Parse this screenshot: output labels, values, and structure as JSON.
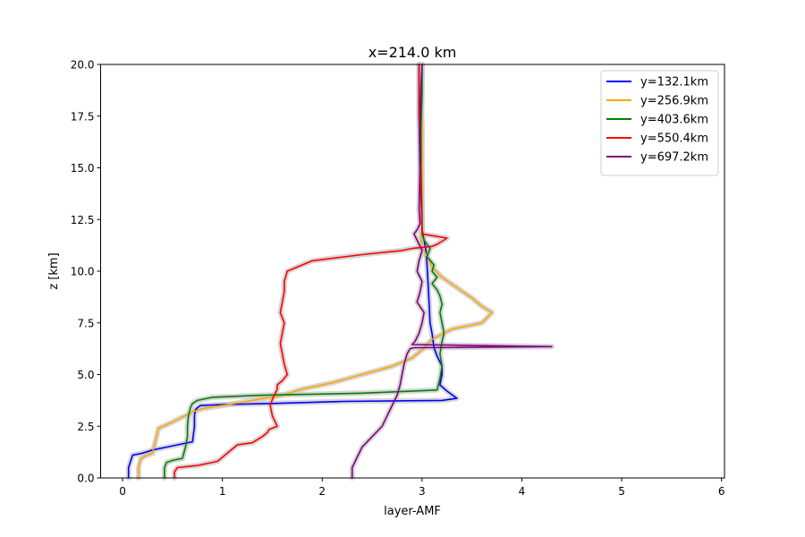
{
  "chart_data": {
    "type": "line",
    "title": "x=214.0 km",
    "xlabel": "layer-AMF",
    "ylabel": "z [km]",
    "xlim": [
      -0.22,
      6.03
    ],
    "ylim": [
      0,
      20
    ],
    "xticks": [
      0,
      1,
      2,
      3,
      4,
      5,
      6
    ],
    "xtick_labels": [
      "0",
      "1",
      "2",
      "3",
      "4",
      "5",
      "6"
    ],
    "yticks": [
      0,
      2.5,
      5,
      7.5,
      10,
      12.5,
      15,
      17.5,
      20
    ],
    "ytick_labels": [
      "0.0",
      "2.5",
      "5.0",
      "7.5",
      "10.0",
      "12.5",
      "15.0",
      "17.5",
      "20.0"
    ],
    "grid": false,
    "legend_position": "top-right",
    "uncertainty_color": "#c8c8c8",
    "series": [
      {
        "name": "y=132.1km",
        "color": "#0000ff",
        "x": [
          0.06,
          0.06,
          0.08,
          0.1,
          0.2,
          0.3,
          0.45,
          0.6,
          0.7,
          0.72,
          0.72,
          0.73,
          0.75,
          0.78,
          1.0,
          1.5,
          2.2,
          3.2,
          3.35,
          3.25,
          3.18,
          3.2,
          3.2,
          3.15,
          3.12,
          3.1,
          3.08,
          3.07,
          3.06,
          3.05,
          3.04,
          3.02,
          3.0,
          2.98,
          2.97,
          2.97
        ],
        "y": [
          0.0,
          0.5,
          0.8,
          1.1,
          1.2,
          1.35,
          1.5,
          1.65,
          1.75,
          2.5,
          3.0,
          3.3,
          3.4,
          3.5,
          3.55,
          3.6,
          3.7,
          3.75,
          3.85,
          4.2,
          4.5,
          5.0,
          5.4,
          5.9,
          6.3,
          7.0,
          7.5,
          8.5,
          9.5,
          10.3,
          11.0,
          11.5,
          12.0,
          15.0,
          17.5,
          20.0
        ]
      },
      {
        "name": "y=256.9km",
        "color": "#ffa500",
        "x": [
          0.16,
          0.16,
          0.18,
          0.22,
          0.3,
          0.32,
          0.34,
          0.36,
          0.5,
          0.6,
          0.65,
          0.7,
          0.8,
          1.0,
          1.3,
          1.6,
          1.8,
          2.1,
          2.4,
          2.7,
          2.9,
          3.0,
          3.1,
          3.3,
          3.6,
          3.7,
          3.6,
          3.5,
          3.35,
          3.2,
          3.1,
          3.05,
          3.0,
          2.99,
          3.0,
          3.0,
          3.0,
          3.0,
          2.99,
          3.0
        ],
        "y": [
          0.0,
          0.5,
          0.9,
          1.05,
          1.2,
          1.6,
          2.0,
          2.4,
          2.7,
          2.95,
          3.05,
          3.2,
          3.35,
          3.5,
          3.75,
          4.0,
          4.3,
          4.6,
          5.0,
          5.4,
          5.8,
          6.2,
          6.7,
          7.2,
          7.5,
          8.0,
          8.3,
          8.7,
          9.2,
          9.7,
          10.2,
          10.7,
          11.2,
          11.6,
          12.0,
          13.0,
          15.0,
          17.0,
          18.5,
          20.0
        ]
      },
      {
        "name": "y=403.6km",
        "color": "#008000",
        "x": [
          0.42,
          0.42,
          0.44,
          0.5,
          0.6,
          0.63,
          0.65,
          0.65,
          0.66,
          0.68,
          0.7,
          0.75,
          0.9,
          1.4,
          2.4,
          3.15,
          3.18,
          3.2,
          3.18,
          3.2,
          3.22,
          3.2,
          3.18,
          3.2,
          3.18,
          3.15,
          3.1,
          3.15,
          3.1,
          3.12,
          3.05,
          3.08,
          3.02,
          3.0,
          3.0,
          2.99,
          2.99,
          3.0,
          3.0
        ],
        "y": [
          0.0,
          0.5,
          0.75,
          0.85,
          0.95,
          1.5,
          2.0,
          2.5,
          3.0,
          3.4,
          3.6,
          3.75,
          3.9,
          4.0,
          4.1,
          4.25,
          4.8,
          5.4,
          6.0,
          6.6,
          7.0,
          7.5,
          8.0,
          8.4,
          8.8,
          9.1,
          9.4,
          9.7,
          10.0,
          10.3,
          10.7,
          11.1,
          11.5,
          11.8,
          12.5,
          15.0,
          17.0,
          18.5,
          20.0
        ]
      },
      {
        "name": "y=550.4km",
        "color": "#ff0000",
        "x": [
          0.52,
          0.52,
          0.55,
          0.75,
          0.95,
          1.05,
          1.15,
          1.3,
          1.4,
          1.45,
          1.47,
          1.55,
          1.5,
          1.48,
          1.5,
          1.52,
          1.55,
          1.55,
          1.6,
          1.65,
          1.62,
          1.6,
          1.58,
          1.6,
          1.62,
          1.58,
          1.6,
          1.62,
          1.62,
          1.65,
          1.9,
          2.4,
          2.8,
          2.9,
          3.1,
          3.15,
          3.25,
          3.0,
          3.0,
          2.99,
          2.98,
          2.97,
          2.97
        ],
        "y": [
          0.0,
          0.3,
          0.5,
          0.6,
          0.8,
          1.2,
          1.6,
          1.7,
          2.0,
          2.2,
          2.35,
          2.5,
          3.0,
          3.5,
          3.8,
          4.0,
          4.3,
          4.5,
          4.7,
          5.0,
          5.5,
          6.0,
          6.5,
          7.0,
          7.5,
          8.0,
          8.5,
          9.0,
          9.5,
          10.0,
          10.5,
          10.8,
          11.0,
          11.1,
          11.2,
          11.3,
          11.6,
          11.8,
          12.0,
          14.0,
          16.0,
          18.0,
          20.0
        ]
      },
      {
        "name": "y=697.2km",
        "color": "#800080",
        "x": [
          2.3,
          2.3,
          2.35,
          2.4,
          2.5,
          2.6,
          2.65,
          2.7,
          2.75,
          2.78,
          2.8,
          2.82,
          2.85,
          2.88,
          2.92,
          4.3,
          2.9,
          2.93,
          2.97,
          3.0,
          3.02,
          2.95,
          2.98,
          3.0,
          2.95,
          2.97,
          3.0,
          2.95,
          2.92,
          2.95,
          2.98,
          2.97,
          2.98,
          2.98,
          2.99,
          3.0
        ],
        "y": [
          0.0,
          0.5,
          1.0,
          1.5,
          2.0,
          2.5,
          3.0,
          3.5,
          4.0,
          4.5,
          5.0,
          5.5,
          6.0,
          6.25,
          6.3,
          6.35,
          6.45,
          6.6,
          7.0,
          7.5,
          8.0,
          8.5,
          9.0,
          9.5,
          10.0,
          10.5,
          11.0,
          11.5,
          11.8,
          12.0,
          12.3,
          13.0,
          15.0,
          17.0,
          19.0,
          20.0
        ]
      }
    ]
  }
}
